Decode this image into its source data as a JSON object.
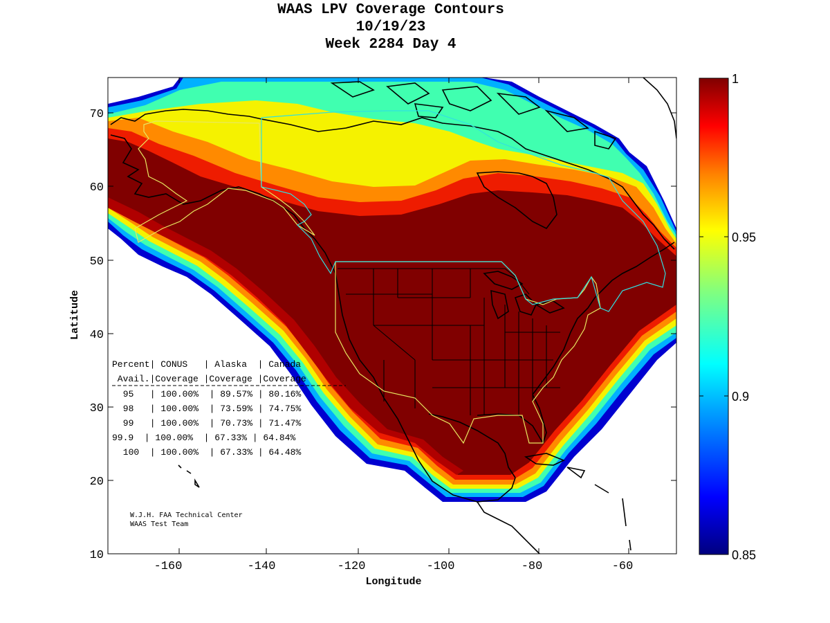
{
  "title": {
    "line1": "WAAS LPV Coverage Contours",
    "line2": "10/19/23",
    "line3": "Week 2284 Day 4"
  },
  "axes": {
    "xlabel": "Longitude",
    "ylabel": "Latitude",
    "xlim": [
      -175,
      -50
    ],
    "ylim": [
      10,
      75
    ],
    "xticks": [
      "-160",
      "-140",
      "-120",
      "-100",
      "-80",
      "-60"
    ],
    "yticks": [
      "70",
      "60",
      "50",
      "40",
      "30",
      "20",
      "10"
    ]
  },
  "colorbar": {
    "range": [
      0.85,
      1.0
    ],
    "ticks": [
      "1",
      "0.95",
      "0.9",
      "0.85"
    ]
  },
  "coverage_table": {
    "header1": "Percent| CONUS   | Alaska  | Canada",
    "header2": " Avail.|Coverage |Coverage |Coverage",
    "rows": [
      " 95   | 100.00%  | 89.57% | 80.16%",
      " 98   | 100.00%  | 73.59% | 74.75%",
      " 99   | 100.00%  | 70.73% | 71.47%",
      "99.9  | 100.00%  | 67.33% | 64.84%",
      " 100  | 100.00%  | 67.33% | 64.48%"
    ]
  },
  "credit": {
    "line1": "W.J.H. FAA Technical Center",
    "line2": "WAAS Test Team"
  },
  "colors": {
    "dark_red": "#800000",
    "red": "#ee1c00",
    "orange": "#ff8a00",
    "yellow": "#f5f200",
    "cyan": "#00d8ff",
    "blue": "#0033ff",
    "navy": "#00008f",
    "region_boundary": "#e8e860",
    "canada_boundary": "#30e0e0"
  }
}
